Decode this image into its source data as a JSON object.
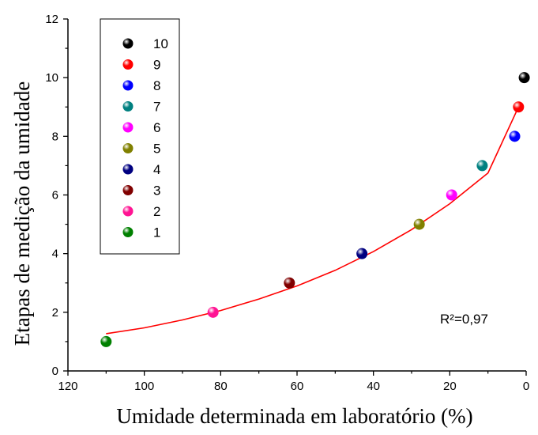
{
  "chart_data": {
    "type": "scatter",
    "title": "",
    "xlabel": "Umidade determinada em laboratório (%)",
    "ylabel": "Etapas de medição da umidade",
    "xlim": [
      120,
      0
    ],
    "ylim": [
      0,
      12
    ],
    "x_ticks": [
      "120",
      "100",
      "80",
      "60",
      "40",
      "20",
      "0"
    ],
    "y_ticks": [
      "0",
      "2",
      "4",
      "6",
      "8",
      "10",
      "12"
    ],
    "grid": false,
    "legend_position": "top-left",
    "series": [
      {
        "name": "10",
        "x": 0.5,
        "y": 10,
        "color": "#000000"
      },
      {
        "name": "9",
        "x": 2,
        "y": 9,
        "color": "#ff0000"
      },
      {
        "name": "8",
        "x": 3,
        "y": 8,
        "color": "#0000ff"
      },
      {
        "name": "7",
        "x": 11.5,
        "y": 7,
        "color": "#008080"
      },
      {
        "name": "6",
        "x": 19.5,
        "y": 6,
        "color": "#ff00ff"
      },
      {
        "name": "5",
        "x": 28,
        "y": 5,
        "color": "#808000"
      },
      {
        "name": "4",
        "x": 43,
        "y": 4,
        "color": "#000080"
      },
      {
        "name": "3",
        "x": 62,
        "y": 3,
        "color": "#800000"
      },
      {
        "name": "2",
        "x": 82,
        "y": 2,
        "color": "#ff1493"
      },
      {
        "name": "1",
        "x": 110,
        "y": 1,
        "color": "#008000"
      }
    ],
    "fit_curve": {
      "color": "#ff0000",
      "x": [
        110,
        100,
        90,
        80,
        70,
        60,
        50,
        40,
        30,
        20,
        10,
        2
      ],
      "y": [
        1.27,
        1.47,
        1.74,
        2.06,
        2.45,
        2.9,
        3.43,
        4.07,
        4.82,
        5.7,
        6.75,
        9.0
      ]
    },
    "annotations": [
      {
        "text": "R²=0,97"
      }
    ]
  }
}
